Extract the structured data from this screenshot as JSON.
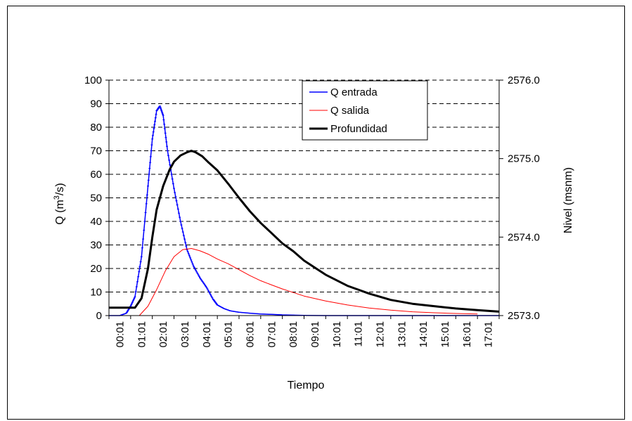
{
  "chart_data": {
    "type": "line",
    "xlabel": "Tiempo",
    "ylabel_main": "Q (m",
    "ylabel_sup": "3",
    "ylabel_tail": "/s)",
    "y2label": "Nivel (msnm)",
    "x_categories": [
      "00:01",
      "01:01",
      "02:01",
      "03:01",
      "04:01",
      "05:01",
      "06:01",
      "07:01",
      "08:01",
      "09:01",
      "10:01",
      "11:01",
      "12:01",
      "13:01",
      "14:01",
      "15:01",
      "16:01",
      "17:01"
    ],
    "ylim": [
      0,
      100
    ],
    "yticks": [
      "0",
      "10",
      "20",
      "30",
      "40",
      "50",
      "60",
      "70",
      "80",
      "90",
      "100"
    ],
    "y2lim": [
      2573.0,
      2576.0
    ],
    "y2ticks": [
      "2573.0",
      "2574.0",
      "2575.0",
      "2576.0"
    ],
    "grid": "horizontal dashed",
    "legend_position": "top-right",
    "colors": {
      "entrada": "#0000ff",
      "salida": "#ff0000",
      "profundidad": "#000000"
    },
    "series": [
      {
        "name": "Q entrada",
        "axis": "left",
        "x": [
          0,
          0.5,
          0.8,
          1.0,
          1.2,
          1.5,
          1.8,
          2.0,
          2.2,
          2.35,
          2.5,
          2.7,
          3.0,
          3.3,
          3.6,
          3.9,
          4.2,
          4.5,
          4.8,
          5.0,
          5.3,
          5.6,
          6.0,
          6.5,
          7.0,
          7.5,
          8.0,
          9.0,
          10.0,
          11.0,
          12.0,
          13.0,
          14.0,
          15.0,
          16.0,
          17.0,
          18.0
        ],
        "values": [
          0,
          0,
          1,
          4,
          8,
          25,
          55,
          75,
          87,
          89,
          85,
          70,
          54,
          40,
          28,
          21,
          16,
          12,
          7,
          4.5,
          3,
          2,
          1.4,
          1,
          0.7,
          0.5,
          0.3,
          0.1,
          0,
          0,
          0,
          0,
          0,
          0,
          0,
          0,
          0
        ]
      },
      {
        "name": "Q salida",
        "axis": "left",
        "x": [
          0,
          1.4,
          1.8,
          2.2,
          2.6,
          3.0,
          3.4,
          3.8,
          4.2,
          4.6,
          5.0,
          5.5,
          6.0,
          6.5,
          7.0,
          7.5,
          8.0,
          8.5,
          9.0,
          10.0,
          11.0,
          12.0,
          13.0,
          14.0,
          15.0,
          16.0,
          17.0
        ],
        "values": [
          0,
          0,
          4,
          11,
          19,
          25,
          28,
          28.5,
          27.5,
          26,
          24,
          22,
          19.5,
          17,
          14.8,
          13,
          11.3,
          9.8,
          8.3,
          6.2,
          4.5,
          3.2,
          2.3,
          1.6,
          1.2,
          0.9,
          0.7
        ]
      },
      {
        "name": "Profundidad",
        "axis": "right",
        "x": [
          0,
          1.2,
          1.5,
          1.8,
          2.0,
          2.2,
          2.5,
          2.8,
          3.0,
          3.3,
          3.6,
          3.8,
          4.0,
          4.3,
          4.6,
          5.0,
          5.5,
          6.0,
          6.5,
          7.0,
          7.5,
          8.0,
          8.5,
          9.0,
          10.0,
          11.0,
          12.0,
          13.0,
          14.0,
          15.0,
          16.0,
          17.0,
          18.0
        ],
        "values": [
          2573.1,
          2573.1,
          2573.22,
          2573.6,
          2574.0,
          2574.35,
          2574.65,
          2574.86,
          2574.96,
          2575.04,
          2575.08,
          2575.1,
          2575.08,
          2575.03,
          2574.95,
          2574.85,
          2574.68,
          2574.5,
          2574.33,
          2574.18,
          2574.05,
          2573.92,
          2573.82,
          2573.7,
          2573.52,
          2573.38,
          2573.28,
          2573.2,
          2573.15,
          2573.12,
          2573.09,
          2573.07,
          2573.05
        ]
      }
    ]
  }
}
